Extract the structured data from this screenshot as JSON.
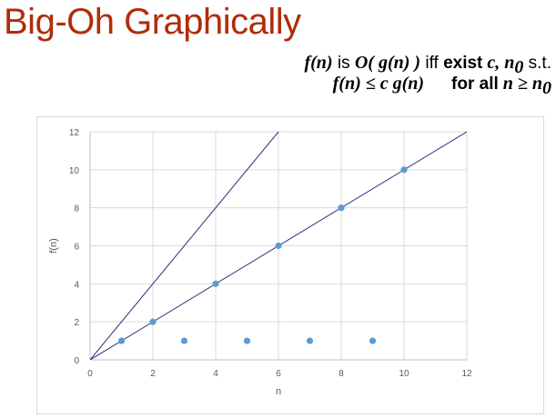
{
  "slide": {
    "title": "Big-Oh Graphically",
    "definition_line1": {
      "f_of_n": "f(n)",
      "is": " is ",
      "O_of_g": "O( g(n) )",
      "iff": " iff ",
      "exist": "exist",
      "vars": " c, n",
      "sub0": "0",
      "st": " s.t."
    },
    "definition_line2": {
      "ineq": "f(n) ≤ c g(n)",
      "forall": "for all",
      "cond": " n ≥ n",
      "sub0": "0"
    }
  },
  "chart_data": {
    "type": "scatter",
    "xlabel": "n",
    "ylabel": "f(n)",
    "xlim": [
      0,
      12
    ],
    "ylim": [
      0,
      12
    ],
    "x_ticks": [
      0,
      2,
      4,
      6,
      8,
      10,
      12
    ],
    "y_ticks": [
      0,
      2,
      4,
      6,
      8,
      10,
      12
    ],
    "grid": true,
    "series": [
      {
        "type": "scatter",
        "color": "#5b9bd5",
        "points": [
          [
            1,
            1
          ],
          [
            2,
            2
          ],
          [
            3,
            1
          ],
          [
            4,
            4
          ],
          [
            5,
            1
          ],
          [
            6,
            6
          ],
          [
            7,
            1
          ],
          [
            8,
            8
          ],
          [
            9,
            1
          ],
          [
            10,
            10
          ]
        ]
      }
    ],
    "lines": [
      {
        "color": "#2e2e7a",
        "from": [
          0,
          0
        ],
        "to": [
          12,
          12
        ]
      },
      {
        "color": "#2e2e7a",
        "from": [
          0,
          0
        ],
        "to": [
          6,
          12
        ]
      }
    ]
  }
}
